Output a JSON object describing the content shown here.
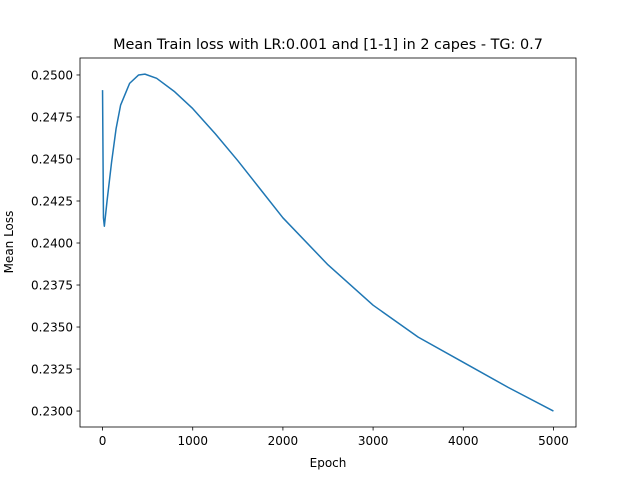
{
  "chart_data": {
    "type": "line",
    "title": "Mean Train loss with LR:0.001 and [1-1] in 2 capes - TG: 0.7",
    "x_label": "Epoch",
    "y_label": "Mean Loss",
    "x": [
      0,
      10,
      20,
      50,
      100,
      150,
      200,
      300,
      400,
      470,
      600,
      800,
      1000,
      1250,
      1500,
      1750,
      2000,
      2500,
      3000,
      3500,
      4000,
      4500,
      5000
    ],
    "series": [
      {
        "name": "Mean Train loss",
        "color": "#1f77b4",
        "values": [
          0.2491,
          0.2415,
          0.241,
          0.2425,
          0.2448,
          0.2468,
          0.2482,
          0.2495,
          0.25,
          0.25005,
          0.2498,
          0.249,
          0.248,
          0.2465,
          0.2449,
          0.2432,
          0.2415,
          0.2387,
          0.2363,
          0.2344,
          0.2329,
          0.2314,
          0.23
        ]
      }
    ],
    "xlim": [
      -250,
      5250
    ],
    "ylim": [
      0.22905,
      0.25101
    ],
    "xticks": [
      0,
      1000,
      2000,
      3000,
      4000,
      5000
    ],
    "yticks": [
      {
        "value": 0.23,
        "label": "0.2300"
      },
      {
        "value": 0.2325,
        "label": "0.2325"
      },
      {
        "value": 0.235,
        "label": "0.2350"
      },
      {
        "value": 0.2375,
        "label": "0.2375"
      },
      {
        "value": 0.24,
        "label": "0.2400"
      },
      {
        "value": 0.2425,
        "label": "0.2425"
      },
      {
        "value": 0.245,
        "label": "0.2450"
      },
      {
        "value": 0.2475,
        "label": "0.2475"
      },
      {
        "value": 0.25,
        "label": "0.2500"
      }
    ],
    "grid": false
  }
}
